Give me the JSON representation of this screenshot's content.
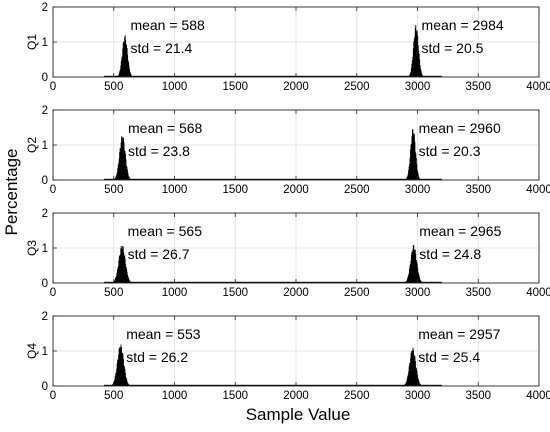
{
  "figure": {
    "ylabel": "Percentage",
    "xlabel": "Sample Value"
  },
  "chart_data": [
    {
      "type": "bar",
      "ylabel": "Q1",
      "xlim": [
        0,
        4000
      ],
      "ylim": [
        0,
        2
      ],
      "x_ticks": [
        "0",
        "500",
        "1000",
        "1500",
        "2000",
        "2500",
        "3000",
        "3500",
        "4000"
      ],
      "y_ticks": [
        "0",
        "1",
        "2"
      ],
      "grid": true,
      "peaks": [
        {
          "mean": 588,
          "std": 21.4,
          "peak_height": 1.2,
          "mean_label": "mean = 588",
          "std_label": "std = 21.4"
        },
        {
          "mean": 2984,
          "std": 20.5,
          "peak_height": 1.5,
          "mean_label": "mean = 2984",
          "std_label": "std = 20.5"
        }
      ]
    },
    {
      "type": "bar",
      "ylabel": "Q2",
      "xlim": [
        0,
        4000
      ],
      "ylim": [
        0,
        2
      ],
      "x_ticks": [
        "0",
        "500",
        "1000",
        "1500",
        "2000",
        "2500",
        "3000",
        "3500",
        "4000"
      ],
      "y_ticks": [
        "0",
        "1",
        "2"
      ],
      "grid": true,
      "peaks": [
        {
          "mean": 568,
          "std": 23.8,
          "peak_height": 1.3,
          "mean_label": "mean = 568",
          "std_label": "std = 23.8"
        },
        {
          "mean": 2960,
          "std": 20.3,
          "peak_height": 1.5,
          "mean_label": "mean = 2960",
          "std_label": "std = 20.3"
        }
      ]
    },
    {
      "type": "bar",
      "ylabel": "Q3",
      "xlim": [
        0,
        4000
      ],
      "ylim": [
        0,
        2
      ],
      "x_ticks": [
        "0",
        "500",
        "1000",
        "1500",
        "2000",
        "2500",
        "3000",
        "3500",
        "4000"
      ],
      "y_ticks": [
        "0",
        "1",
        "2"
      ],
      "grid": true,
      "peaks": [
        {
          "mean": 565,
          "std": 26.7,
          "peak_height": 1.1,
          "mean_label": "mean = 565",
          "std_label": "std = 26.7"
        },
        {
          "mean": 2965,
          "std": 24.8,
          "peak_height": 1.1,
          "mean_label": "mean = 2965",
          "std_label": "std = 24.8"
        }
      ]
    },
    {
      "type": "bar",
      "ylabel": "Q4",
      "xlim": [
        0,
        4000
      ],
      "ylim": [
        0,
        2
      ],
      "x_ticks": [
        "0",
        "500",
        "1000",
        "1500",
        "2000",
        "2500",
        "3000",
        "3500",
        "4000"
      ],
      "y_ticks": [
        "0",
        "1",
        "2"
      ],
      "grid": true,
      "peaks": [
        {
          "mean": 553,
          "std": 26.2,
          "peak_height": 1.2,
          "mean_label": "mean = 553",
          "std_label": "std = 26.2"
        },
        {
          "mean": 2957,
          "std": 25.4,
          "peak_height": 1.1,
          "mean_label": "mean = 2957",
          "std_label": "std = 25.4"
        }
      ]
    }
  ]
}
